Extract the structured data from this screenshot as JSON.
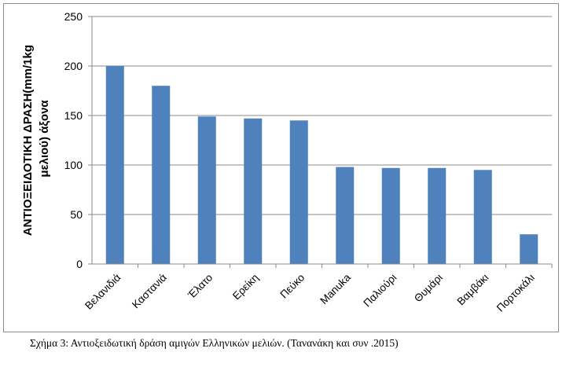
{
  "chart_data": {
    "type": "bar",
    "title": "",
    "xlabel": "",
    "ylabel": "ΑΝΤΙΟΞΕΙΔΟΤΙΚΗ ΔΡΑΣΗ(mm/1kg μελιού) άξονα",
    "ylabel_lines": [
      "ΑΝΤΙΟΞΕΙΔΟΤΙΚΗ ΔΡΑΣΗ(mm/1kg",
      "μελιού) άξονα"
    ],
    "categories": [
      "Βελανιδιά",
      "Καστανιά",
      "Έλατο",
      "Ερείκη",
      "Πεύκο",
      "Manuka",
      "Παλιούρι",
      "Θυμάρι",
      "Βαμβάκι",
      "Πορτοκάλι"
    ],
    "values": [
      200,
      180,
      149,
      147,
      145,
      98,
      97,
      97,
      95,
      30
    ],
    "ylim": [
      0,
      250
    ],
    "yticks": [
      0,
      50,
      100,
      150,
      200,
      250
    ],
    "grid": true,
    "legend": "none",
    "bar_color": "#4f81bd"
  },
  "caption": "Σχήμα 3: Αντιοξειδωτική δράση αμιγών Ελληνικών μελιών. (Τανανάκη και συν .2015)"
}
